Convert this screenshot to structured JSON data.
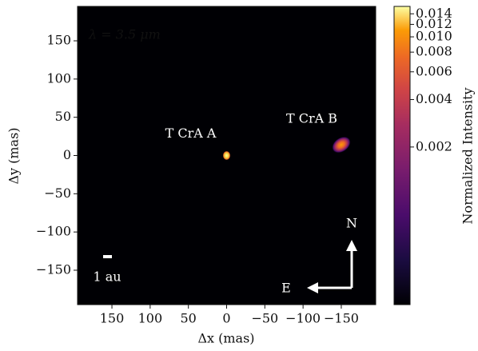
{
  "chart_data": {
    "type": "image",
    "annotation": "λ = 3.5 μm",
    "xlabel": "Δx (mas)",
    "ylabel": "Δy (mas)",
    "xlim": [
      195,
      -195
    ],
    "ylim": [
      -195,
      195
    ],
    "xticks": [
      150,
      100,
      50,
      0,
      {
        "value": -50,
        "label": "−50"
      },
      {
        "value": -100,
        "label": "−100"
      },
      {
        "value": -150,
        "label": "−150"
      }
    ],
    "yticks": [
      150,
      100,
      50,
      0,
      {
        "value": -50,
        "label": "−50"
      },
      {
        "value": -100,
        "label": "−100"
      },
      {
        "value": -150,
        "label": "−150"
      }
    ],
    "sources": [
      {
        "label": "T CrA A",
        "x": 0,
        "y": 0
      },
      {
        "label": "T CrA B",
        "x": -150,
        "y": 14
      }
    ],
    "scale_bar": {
      "label": "1 au"
    },
    "compass": {
      "north": "N",
      "east": "E"
    },
    "colorbar": {
      "label": "Normalized Intensity",
      "scale": "log",
      "clim": [
        0.0002,
        0.0156
      ],
      "ticks": [
        0.014,
        0.012,
        {
          "value": 0.01,
          "label": "0.010"
        },
        0.008,
        0.006,
        0.004,
        0.002
      ]
    }
  }
}
